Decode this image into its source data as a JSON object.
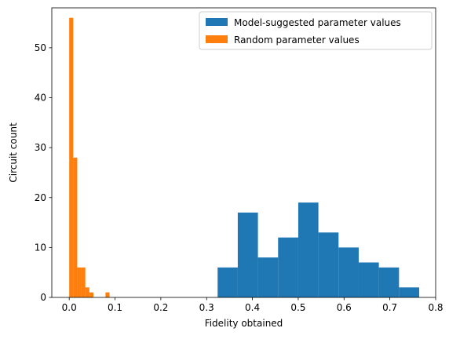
{
  "chart_data": {
    "type": "bar",
    "xlabel": "Fidelity obtained",
    "ylabel": "Circuit count",
    "xlim": [
      -0.038,
      0.8
    ],
    "ylim": [
      0,
      58
    ],
    "xticks": [
      "0.0",
      "0.1",
      "0.2",
      "0.3",
      "0.4",
      "0.5",
      "0.6",
      "0.7",
      "0.8"
    ],
    "xtick_values": [
      0.0,
      0.1,
      0.2,
      0.3,
      0.4,
      0.5,
      0.6,
      0.7,
      0.8
    ],
    "yticks": [
      "0",
      "10",
      "20",
      "30",
      "40",
      "50"
    ],
    "ytick_values": [
      0,
      10,
      20,
      30,
      40,
      50
    ],
    "grid": false,
    "legend_position": "top-right",
    "series": [
      {
        "name": "Model-suggested parameter values",
        "color": "#1f77b4",
        "bins": [
          {
            "x0": 0.324,
            "x1": 0.368,
            "count": 6
          },
          {
            "x0": 0.368,
            "x1": 0.412,
            "count": 17
          },
          {
            "x0": 0.412,
            "x1": 0.456,
            "count": 8
          },
          {
            "x0": 0.456,
            "x1": 0.5,
            "count": 12
          },
          {
            "x0": 0.5,
            "x1": 0.544,
            "count": 19
          },
          {
            "x0": 0.544,
            "x1": 0.588,
            "count": 13
          },
          {
            "x0": 0.588,
            "x1": 0.632,
            "count": 10
          },
          {
            "x0": 0.632,
            "x1": 0.676,
            "count": 7
          },
          {
            "x0": 0.676,
            "x1": 0.72,
            "count": 6
          },
          {
            "x0": 0.72,
            "x1": 0.764,
            "count": 2
          }
        ]
      },
      {
        "name": "Random parameter values",
        "color": "#ff7f0e",
        "bins": [
          {
            "x0": 0.0,
            "x1": 0.0088,
            "count": 56
          },
          {
            "x0": 0.0088,
            "x1": 0.0176,
            "count": 28
          },
          {
            "x0": 0.0176,
            "x1": 0.0264,
            "count": 6
          },
          {
            "x0": 0.0264,
            "x1": 0.0352,
            "count": 6
          },
          {
            "x0": 0.0352,
            "x1": 0.044,
            "count": 2
          },
          {
            "x0": 0.044,
            "x1": 0.0528,
            "count": 1
          },
          {
            "x0": 0.0528,
            "x1": 0.0616,
            "count": 0
          },
          {
            "x0": 0.0616,
            "x1": 0.0704,
            "count": 0
          },
          {
            "x0": 0.0704,
            "x1": 0.0792,
            "count": 0
          },
          {
            "x0": 0.0792,
            "x1": 0.088,
            "count": 1
          }
        ]
      }
    ]
  }
}
